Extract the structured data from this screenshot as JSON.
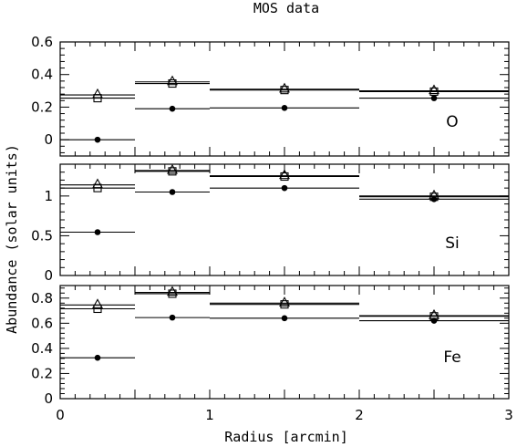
{
  "chart_data": {
    "type": "scatter",
    "title": "MOS data",
    "xlabel": "Radius [arcmin]",
    "ylabel": "Abundance (solar units)",
    "xlim": [
      0,
      3
    ],
    "x_ticks": [
      "0",
      "1",
      "2",
      "3"
    ],
    "bins": [
      [
        0,
        0.5
      ],
      [
        0.5,
        1
      ],
      [
        1,
        2
      ],
      [
        2,
        3
      ]
    ],
    "x": [
      0.25,
      0.75,
      1.5,
      2.5
    ],
    "markers": {
      "triangle": "open-triangle",
      "square": "open-square",
      "circle": "filled-circle"
    },
    "panels": [
      {
        "label": "O",
        "ylim": [
          -0.1,
          0.6
        ],
        "y_ticks": [
          {
            "v": 0,
            "t": "0"
          },
          {
            "v": 0.2,
            "t": "0.2"
          },
          {
            "v": 0.4,
            "t": "0.4"
          },
          {
            "v": 0.6,
            "t": "0.6"
          }
        ],
        "series": [
          {
            "marker": "triangle",
            "values": [
              0.275,
              0.355,
              0.31,
              0.3
            ]
          },
          {
            "marker": "square",
            "values": [
              0.255,
              0.345,
              0.305,
              0.295
            ]
          },
          {
            "marker": "circle",
            "values": [
              0.0,
              0.19,
              0.195,
              0.255
            ]
          }
        ]
      },
      {
        "label": "Si",
        "ylim": [
          0,
          1.4
        ],
        "y_ticks": [
          {
            "v": 0,
            "t": "0"
          },
          {
            "v": 0.5,
            "t": "0.5"
          },
          {
            "v": 1,
            "t": "1"
          }
        ],
        "series": [
          {
            "marker": "triangle",
            "values": [
              1.14,
              1.32,
              1.255,
              1.0
            ]
          },
          {
            "marker": "square",
            "values": [
              1.1,
              1.31,
              1.245,
              0.99
            ]
          },
          {
            "marker": "circle",
            "values": [
              0.545,
              1.05,
              1.1,
              0.96
            ]
          }
        ]
      },
      {
        "label": "Fe",
        "ylim": [
          0,
          0.9
        ],
        "y_ticks": [
          {
            "v": 0,
            "t": "0"
          },
          {
            "v": 0.2,
            "t": "0.2"
          },
          {
            "v": 0.4,
            "t": "0.4"
          },
          {
            "v": 0.6,
            "t": "0.6"
          },
          {
            "v": 0.8,
            "t": "0.8"
          }
        ],
        "series": [
          {
            "marker": "triangle",
            "values": [
              0.745,
              0.845,
              0.76,
              0.66
            ]
          },
          {
            "marker": "square",
            "values": [
              0.715,
              0.835,
              0.75,
              0.655
            ]
          },
          {
            "marker": "circle",
            "values": [
              0.325,
              0.645,
              0.64,
              0.62
            ]
          }
        ]
      }
    ]
  }
}
